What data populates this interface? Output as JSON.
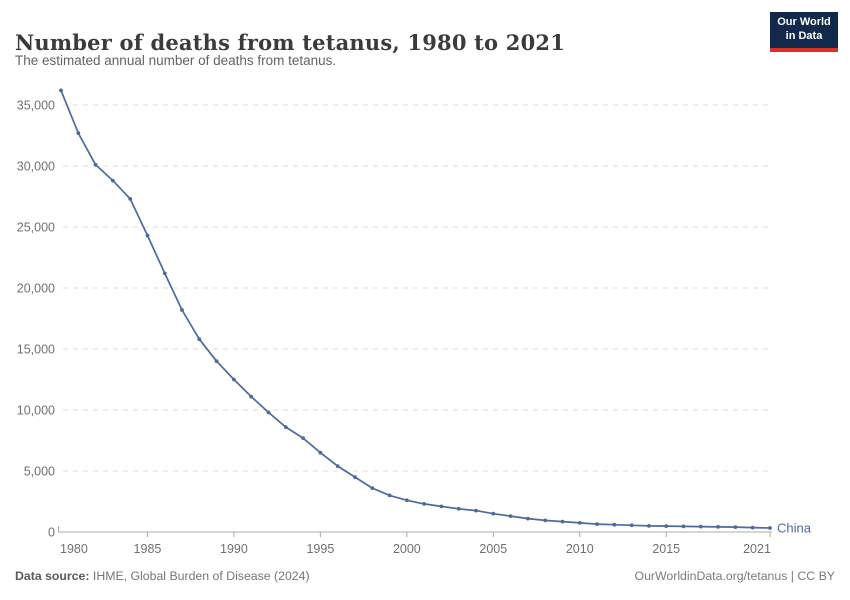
{
  "header": {
    "title": "Number of deaths from tetanus, 1980 to 2021",
    "subtitle": "The estimated annual number of deaths from tetanus.",
    "logo": {
      "line1": "Our World",
      "line2": "in Data"
    }
  },
  "chart_data": {
    "type": "line",
    "title": "Number of deaths from tetanus, 1980 to 2021",
    "subtitle": "The estimated annual number of deaths from tetanus.",
    "xlabel": "",
    "ylabel": "",
    "xlim": [
      1980,
      2021
    ],
    "ylim": [
      0,
      36200
    ],
    "grid": "horizontal-dashed",
    "legend_position": "end-of-line-label",
    "x_ticks": [
      1980,
      1985,
      1990,
      1995,
      2000,
      2005,
      2010,
      2015,
      2021
    ],
    "x_tick_labels": [
      "1980",
      "1985",
      "1990",
      "1995",
      "2000",
      "2005",
      "2010",
      "2015",
      "2021"
    ],
    "y_ticks": [
      0,
      5000,
      10000,
      15000,
      20000,
      25000,
      30000,
      35000
    ],
    "y_tick_labels": [
      "0",
      "5,000",
      "10,000",
      "15,000",
      "20,000",
      "25,000",
      "30,000",
      "35,000"
    ],
    "series": [
      {
        "name": "China",
        "color": "#4c6a9c",
        "point_markers": true,
        "x": [
          1980,
          1981,
          1982,
          1983,
          1984,
          1985,
          1986,
          1987,
          1988,
          1989,
          1990,
          1991,
          1992,
          1993,
          1994,
          1995,
          1996,
          1997,
          1998,
          1999,
          2000,
          2001,
          2002,
          2003,
          2004,
          2005,
          2006,
          2007,
          2008,
          2009,
          2010,
          2011,
          2012,
          2013,
          2014,
          2015,
          2016,
          2017,
          2018,
          2019,
          2020,
          2021
        ],
        "values": [
          36200,
          32700,
          30100,
          28800,
          27300,
          24300,
          21200,
          18200,
          15800,
          14000,
          12500,
          11100,
          9800,
          8600,
          7700,
          6500,
          5400,
          4500,
          3600,
          3000,
          2600,
          2300,
          2100,
          1900,
          1750,
          1500,
          1300,
          1100,
          950,
          850,
          750,
          650,
          600,
          550,
          500,
          480,
          460,
          440,
          420,
          400,
          360,
          330
        ]
      }
    ]
  },
  "footer": {
    "source_label": "Data source:",
    "source_text": " IHME, Global Burden of Disease (2024)",
    "rights": "OurWorldinData.org/tetanus | CC BY"
  },
  "colors": {
    "series_blue": "#4c6a9c",
    "logo_navy": "#12294b",
    "logo_red": "#dc3022",
    "gridline": "#dcdcdc",
    "axis": "#ababab",
    "tick_text": "#707070",
    "title_text": "#3b3b3b"
  }
}
